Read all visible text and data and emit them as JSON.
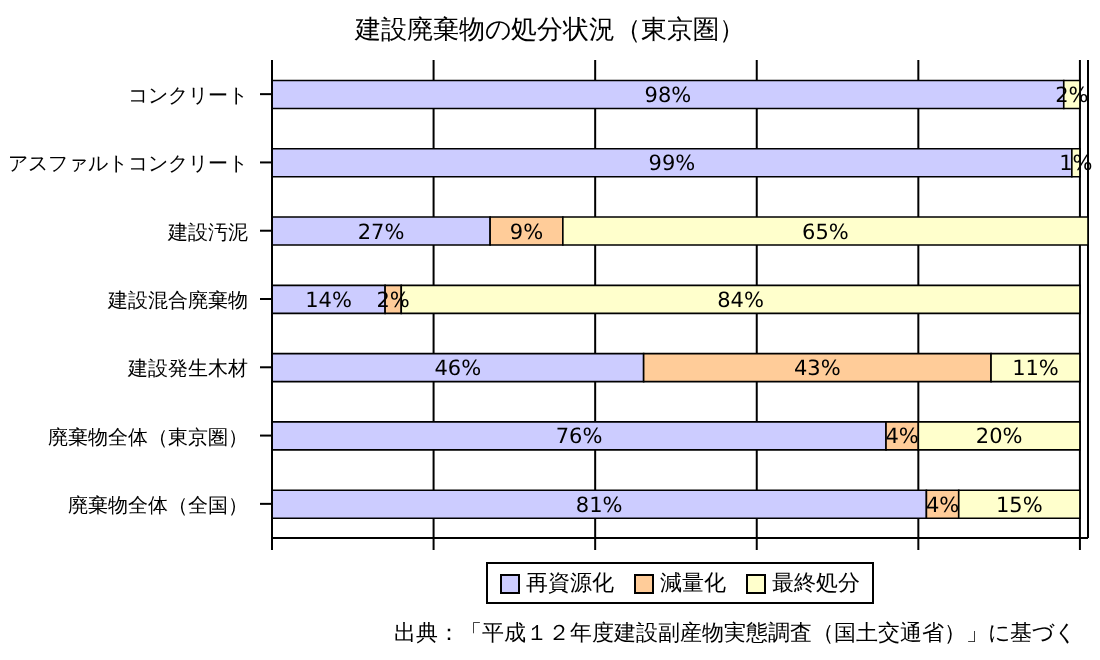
{
  "chart_data": {
    "type": "bar",
    "orientation": "horizontal",
    "stacked": true,
    "title": "建設廃棄物の処分状況（東京圏）",
    "categories": [
      "コンクリート",
      "アスファルトコンクリート",
      "建設汚泥",
      "建設混合廃棄物",
      "建設発生木材",
      "廃棄物全体（東京圏）",
      "廃棄物全体（全国）"
    ],
    "series": [
      {
        "name": "再資源化",
        "color": "#ccccff",
        "values": [
          98,
          99,
          27,
          14,
          46,
          76,
          81
        ],
        "value_labels": [
          "98%",
          "99%",
          "27%",
          "14%",
          "46%",
          "76%",
          "81%"
        ]
      },
      {
        "name": "減量化",
        "color": "#ffcc99",
        "values": [
          0,
          0,
          9,
          2,
          43,
          4,
          4
        ],
        "value_labels": [
          null,
          null,
          "9%",
          "2%",
          "43%",
          "4%",
          "4%"
        ]
      },
      {
        "name": "最終処分",
        "color": "#ffffcc",
        "values": [
          2,
          1,
          65,
          84,
          11,
          20,
          15
        ],
        "value_labels": [
          "2%",
          "1%",
          "65%",
          "84%",
          "11%",
          "20%",
          "15%"
        ]
      }
    ],
    "xlim": [
      0,
      101
    ],
    "xticks": [
      {
        "value": 0,
        "label": null
      },
      {
        "value": 20,
        "label": null
      },
      {
        "value": 40,
        "label": null
      },
      {
        "value": 60,
        "label": null
      },
      {
        "value": 80,
        "label": null
      },
      {
        "value": 100,
        "label": null
      }
    ],
    "tick_labels": "y",
    "grid": "x",
    "legend": "bottom",
    "annotations": [
      "出典：「平成１２年度建設副産物実態調査（国土交通省）」に基づく"
    ]
  }
}
